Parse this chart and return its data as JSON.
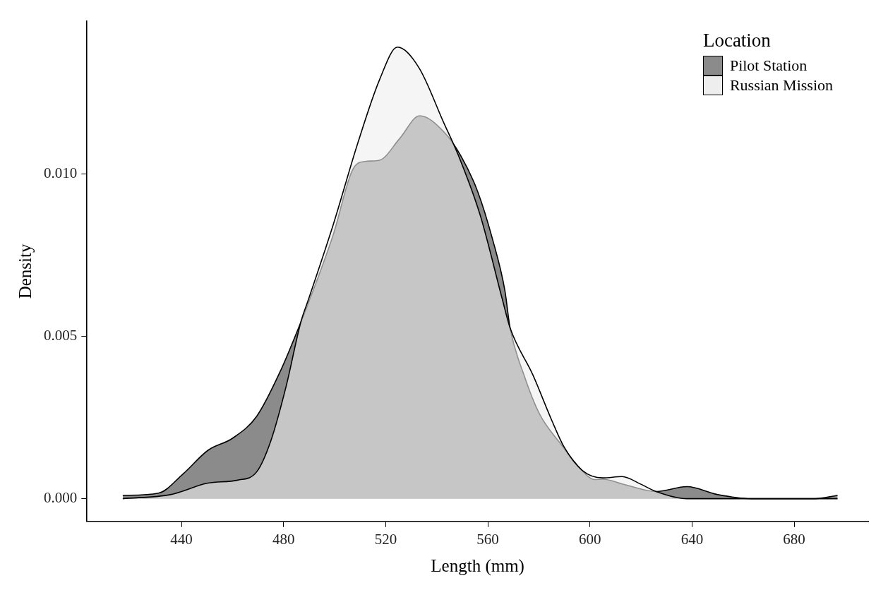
{
  "chart_data": {
    "type": "area",
    "xlabel": "Length (mm)",
    "ylabel": "Density",
    "legend_title": "Location",
    "legend": "top right",
    "grid": false,
    "xlim": [
      403,
      709
    ],
    "xticks": [
      440,
      480,
      520,
      560,
      600,
      640,
      680
    ],
    "ylim": [
      -0.0007,
      0.0147
    ],
    "yticks": [
      {
        "value": 0,
        "label": "0.000"
      },
      {
        "value": 0.005,
        "label": "0.005"
      },
      {
        "value": 0.01,
        "label": "0.010"
      }
    ],
    "series": [
      {
        "name": "Pilot Station",
        "color": "#8b8b8b",
        "x": [
          417,
          431,
          440.6,
          450.4,
          460,
          469.5,
          479,
          486.8,
          489.6,
          499.5,
          507,
          511.9,
          517.6,
          525.4,
          533.3,
          542.7,
          549.4,
          556,
          561.8,
          566.7,
          568.7,
          574.2,
          580.3,
          588.6,
          595.8,
          601.9,
          605,
          613.7,
          625.9,
          638,
          649.8,
          663,
          688,
          697
        ],
        "values": [
          0.0001,
          0.00017,
          0.00076,
          0.00149,
          0.00186,
          0.00254,
          0.00397,
          0.00544,
          0.006,
          0.00814,
          0.01012,
          0.01038,
          0.01042,
          0.01108,
          0.01179,
          0.0113,
          0.01056,
          0.00946,
          0.008,
          0.0064,
          0.00526,
          0.0038,
          0.0026,
          0.00168,
          0.00096,
          0.00059,
          0.0006,
          0.00043,
          0.00022,
          0.00037,
          0.00013,
          0,
          0,
          0.0001
        ]
      },
      {
        "name": "Russian Mission",
        "color": "#eeeeee",
        "x": [
          417,
          436,
          450.4,
          462,
          469.5,
          475,
          481,
          486.8,
          489.6,
          499.5,
          509,
          517.6,
          524.6,
          533,
          542.7,
          548.5,
          557,
          565.8,
          568.7,
          577.7,
          585,
          589.8,
          597,
          605,
          612.6,
          619.8,
          625.9,
          638,
          650,
          697
        ],
        "values": [
          0,
          0.00013,
          0.00048,
          0.00057,
          0.00083,
          0.00178,
          0.00346,
          0.00545,
          0.0061,
          0.00845,
          0.01093,
          0.0129,
          0.0139,
          0.01327,
          0.01158,
          0.01056,
          0.00873,
          0.0061,
          0.00526,
          0.0038,
          0.00242,
          0.0016,
          0.00087,
          0.00064,
          0.00068,
          0.00045,
          0.00022,
          0,
          0,
          0
        ]
      }
    ]
  }
}
